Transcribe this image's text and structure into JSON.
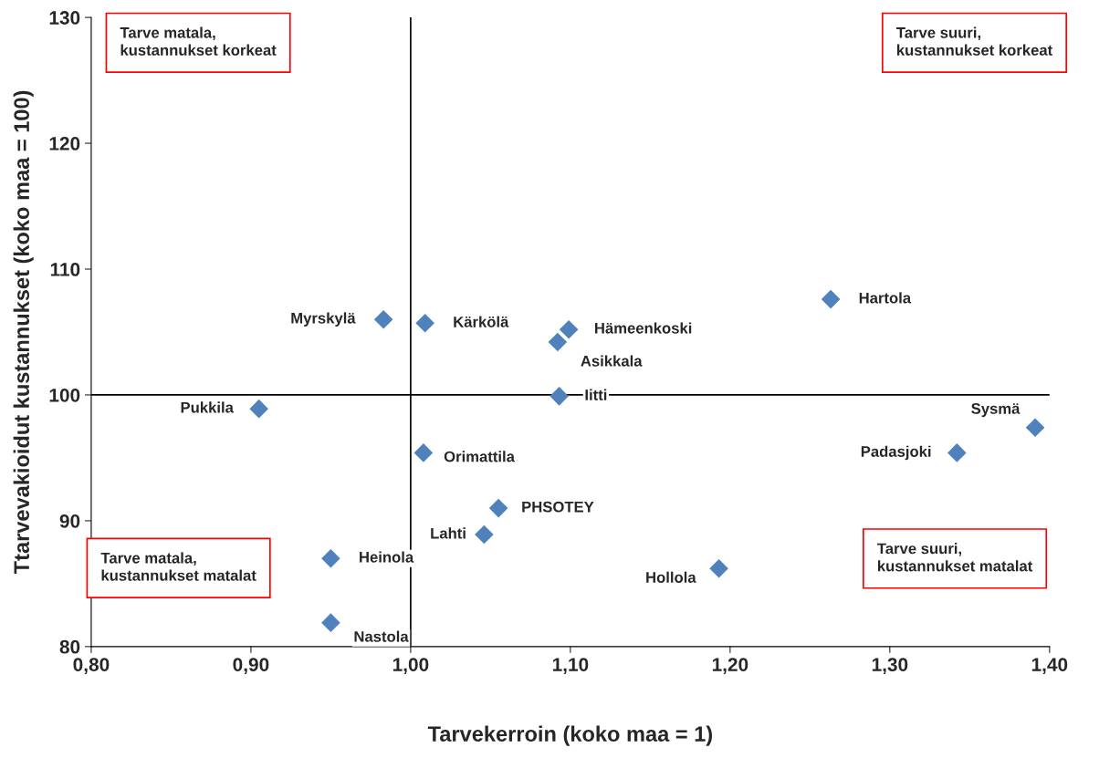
{
  "chart_data": {
    "type": "scatter",
    "xlabel": "Tarvekerroin (koko maa = 1)",
    "ylabel": "Ttarvevakioidut kustannukset (koko maa = 100)",
    "x": [
      0.983,
      1.009,
      1.099,
      1.092,
      1.263,
      0.905,
      1.093,
      1.391,
      1.342,
      1.008,
      1.055,
      1.046,
      0.95,
      1.193,
      0.95
    ],
    "series": [
      {
        "color": "#4f81bd",
        "values": [
          106.0,
          105.7,
          105.2,
          104.2,
          107.6,
          98.9,
          99.9,
          97.4,
          95.4,
          95.4,
          91.0,
          88.9,
          87.0,
          86.2,
          81.9
        ]
      }
    ],
    "marker": "diamond",
    "grid": false,
    "legend": false,
    "xlim": [
      0.8,
      1.4
    ],
    "xticks": [
      {
        "value": 0.8,
        "label": "0,80"
      },
      {
        "value": 0.9,
        "label": "0,90"
      },
      {
        "value": 1.0,
        "label": "1,00"
      },
      {
        "value": 1.1,
        "label": "1,10"
      },
      {
        "value": 1.2,
        "label": "1,20"
      },
      {
        "value": 1.3,
        "label": "1,30"
      },
      {
        "value": 1.4,
        "label": "1,40"
      }
    ],
    "ylim": [
      80,
      130
    ],
    "yticks": [
      80,
      90,
      100,
      110,
      120,
      130
    ],
    "ref_lines": [
      {
        "axis": "x",
        "value": 1.0,
        "color": "#000000"
      },
      {
        "axis": "y",
        "value": 100,
        "color": "#000000"
      }
    ],
    "annotations": [
      "Tarve matala,\nkustannukset korkeat",
      "Tarve suuri,\nkustannukset korkeat",
      "Tarve matala,\nkustannukset matalat",
      "Tarve suuri,\nkustannukset matalat",
      {
        "text": "Myrskylä",
        "x": 0.983,
        "y": 106.0
      },
      {
        "text": "Kärkölä",
        "x": 1.009,
        "y": 105.7
      },
      {
        "text": "Hämeenkoski",
        "x": 1.099,
        "y": 105.2
      },
      {
        "text": "Asikkala",
        "x": 1.092,
        "y": 104.2
      },
      {
        "text": "Hartola",
        "x": 1.263,
        "y": 107.6
      },
      {
        "text": "Pukkila",
        "x": 0.905,
        "y": 98.9
      },
      {
        "text": "Iitti",
        "x": 1.093,
        "y": 99.9
      },
      {
        "text": "Sysmä",
        "x": 1.391,
        "y": 97.4
      },
      {
        "text": "Padasjoki",
        "x": 1.342,
        "y": 95.4
      },
      {
        "text": "Orimattila",
        "x": 1.008,
        "y": 95.4
      },
      {
        "text": "PHSOTEY",
        "x": 1.055,
        "y": 91.0
      },
      {
        "text": "Lahti",
        "x": 1.046,
        "y": 88.9
      },
      {
        "text": "Heinola",
        "x": 0.95,
        "y": 87.0
      },
      {
        "text": "Hollola",
        "x": 1.193,
        "y": 86.2
      },
      {
        "text": "Nastola",
        "x": 0.95,
        "y": 81.9
      }
    ]
  }
}
